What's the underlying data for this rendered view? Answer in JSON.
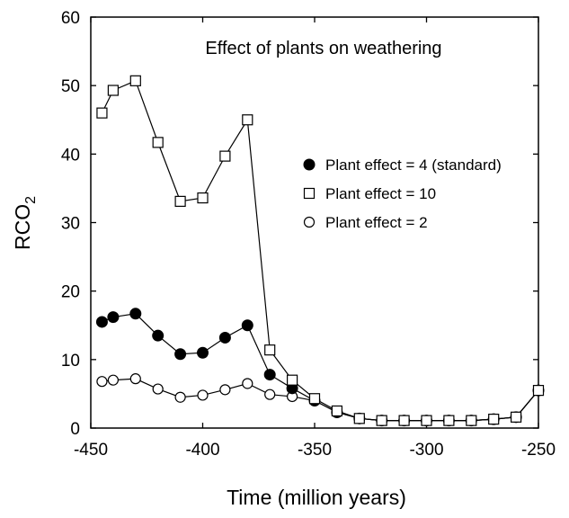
{
  "chart_data": {
    "type": "line",
    "title": "Effect of plants on weathering",
    "xlabel": "Time (million years)",
    "ylabel_main": "RCO",
    "ylabel_sub": "2",
    "xlim": [
      -450,
      -250
    ],
    "ylim": [
      0,
      60
    ],
    "xticks": [
      -450,
      -400,
      -350,
      -300,
      -250
    ],
    "yticks": [
      0,
      10,
      20,
      30,
      40,
      50,
      60
    ],
    "x": [
      -445,
      -440,
      -430,
      -420,
      -410,
      -400,
      -390,
      -380,
      -370,
      -360,
      -350,
      -340,
      -330,
      -320,
      -310,
      -300,
      -290,
      -280,
      -270,
      -260,
      -250
    ],
    "series": [
      {
        "name": "Plant effect = 4 (standard)",
        "marker": "filled-circle",
        "values": [
          15.5,
          16.2,
          16.7,
          13.5,
          10.8,
          11.0,
          13.2,
          15.0,
          7.8,
          5.8,
          4.0,
          2.3,
          1.4,
          1.1,
          1.1,
          1.1,
          1.1,
          1.1,
          1.3,
          1.6,
          5.5
        ]
      },
      {
        "name": "Plant effect = 10",
        "marker": "open-square",
        "values": [
          46.0,
          49.3,
          50.7,
          41.7,
          33.1,
          33.6,
          39.7,
          45.0,
          11.4,
          7.0,
          4.3,
          2.5,
          1.4,
          1.1,
          1.1,
          1.1,
          1.1,
          1.1,
          1.3,
          1.6,
          5.5
        ]
      },
      {
        "name": "Plant effect = 2",
        "marker": "open-circle",
        "values": [
          6.8,
          7.0,
          7.2,
          5.7,
          4.5,
          4.8,
          5.6,
          6.5,
          4.9,
          4.6,
          4.0,
          2.3,
          1.4,
          1.1,
          1.1,
          1.1,
          1.1,
          1.1,
          1.3,
          1.6,
          5.5
        ]
      }
    ],
    "legend_position": "center-right"
  }
}
